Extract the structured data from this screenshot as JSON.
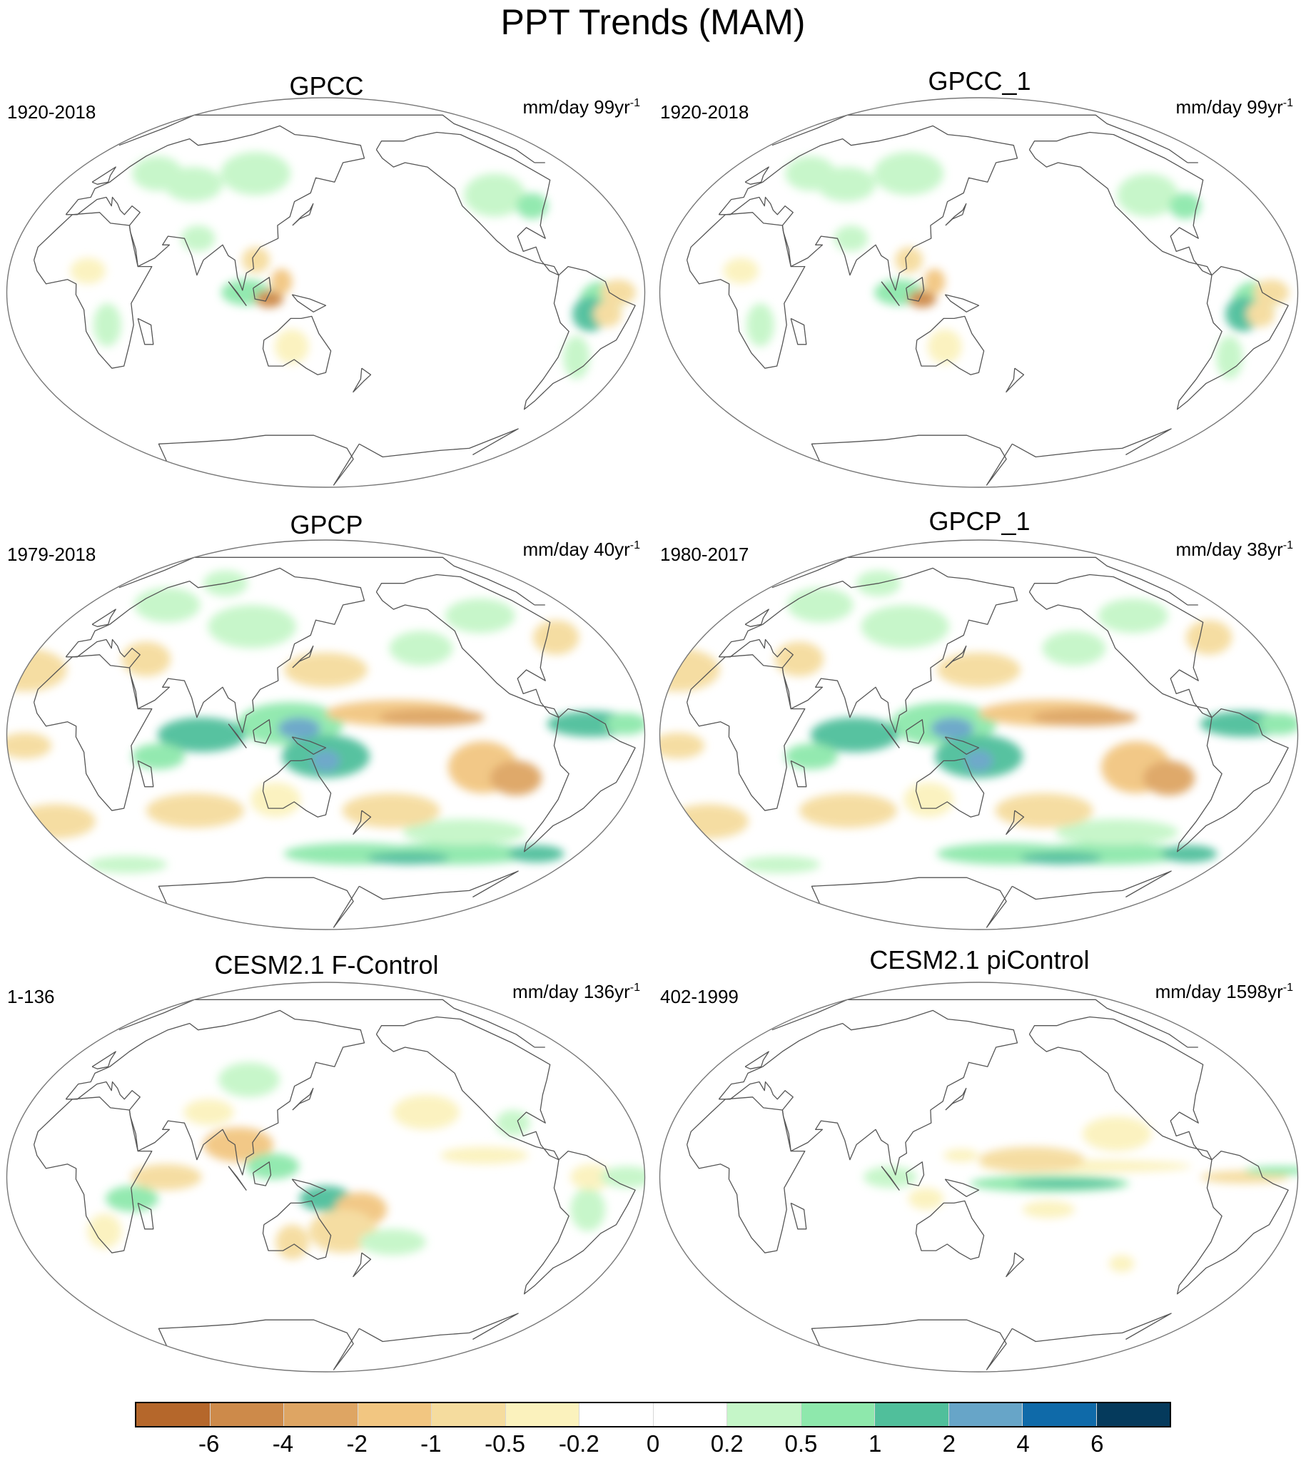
{
  "title": "PPT Trends (MAM)",
  "panels": [
    {
      "name": "GPCC",
      "period": "1920-2018",
      "units": "mm/day 99yr",
      "exponent": "-1",
      "pattern": "gpcc"
    },
    {
      "name": "GPCC_1",
      "period": "1920-2018",
      "units": "mm/day 99yr",
      "exponent": "-1",
      "pattern": "gpcc"
    },
    {
      "name": "GPCP",
      "period": "1979-2018",
      "units": "mm/day 40yr",
      "exponent": "-1",
      "pattern": "gpcp"
    },
    {
      "name": "GPCP_1",
      "period": "1980-2017",
      "units": "mm/day 38yr",
      "exponent": "-1",
      "pattern": "gpcp"
    },
    {
      "name": "CESM2.1 F-Control",
      "period": "1-136",
      "units": "mm/day 136yr",
      "exponent": "-1",
      "pattern": "fcontrol"
    },
    {
      "name": "CESM2.1 piControl",
      "period": "402-1999",
      "units": "mm/day 1598yr",
      "exponent": "-1",
      "pattern": "picontrol"
    }
  ],
  "colorbar": {
    "labels": [
      "-6",
      "-4",
      "-2",
      "-1",
      "-0.5",
      "-0.2",
      "0",
      "0.2",
      "0.5",
      "1",
      "2",
      "4",
      "6"
    ],
    "colors": [
      "#b5672b",
      "#cd8a4a",
      "#dea563",
      "#f2c681",
      "#f5dc9e",
      "#fbf2bd",
      "#ffffff",
      "#ffffff",
      "#c5f6c8",
      "#8ee8ac",
      "#50bf9b",
      "#67a5c8",
      "#0f6aa9",
      "#053a5c"
    ]
  }
}
